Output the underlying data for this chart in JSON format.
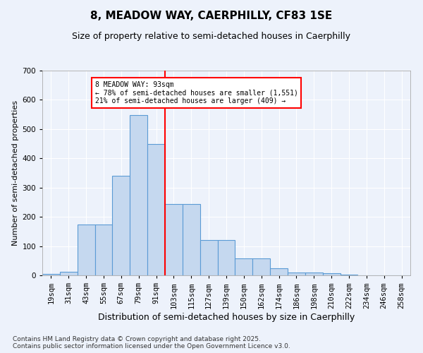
{
  "title": "8, MEADOW WAY, CAERPHILLY, CF83 1SE",
  "subtitle": "Size of property relative to semi-detached houses in Caerphilly",
  "xlabel": "Distribution of semi-detached houses by size in Caerphilly",
  "ylabel": "Number of semi-detached properties",
  "footnote": "Contains HM Land Registry data © Crown copyright and database right 2025.\nContains public sector information licensed under the Open Government Licence v3.0.",
  "bins": [
    "19sqm",
    "31sqm",
    "43sqm",
    "55sqm",
    "67sqm",
    "79sqm",
    "91sqm",
    "103sqm",
    "115sqm",
    "127sqm",
    "139sqm",
    "150sqm",
    "162sqm",
    "174sqm",
    "186sqm",
    "198sqm",
    "210sqm",
    "222sqm",
    "234sqm",
    "246sqm",
    "258sqm"
  ],
  "values": [
    5,
    12,
    175,
    175,
    340,
    548,
    448,
    243,
    243,
    120,
    120,
    58,
    58,
    24,
    10,
    10,
    8,
    2,
    0,
    0,
    0
  ],
  "bar_color": "#c5d8ef",
  "bar_edgecolor": "#5b9bd5",
  "marker_color": "red",
  "marker_line_bin": 6,
  "annotation_text": "8 MEADOW WAY: 93sqm\n← 78% of semi-detached houses are smaller (1,551)\n21% of semi-detached houses are larger (409) →",
  "annotation_box_color": "white",
  "annotation_box_edgecolor": "red",
  "bg_color": "#edf2fb",
  "plot_bg_color": "#edf2fb",
  "grid_color": "#ffffff",
  "ylim": [
    0,
    700
  ],
  "title_fontsize": 11,
  "subtitle_fontsize": 9,
  "xlabel_fontsize": 9,
  "ylabel_fontsize": 8,
  "tick_fontsize": 7.5,
  "footnote_fontsize": 6.5
}
